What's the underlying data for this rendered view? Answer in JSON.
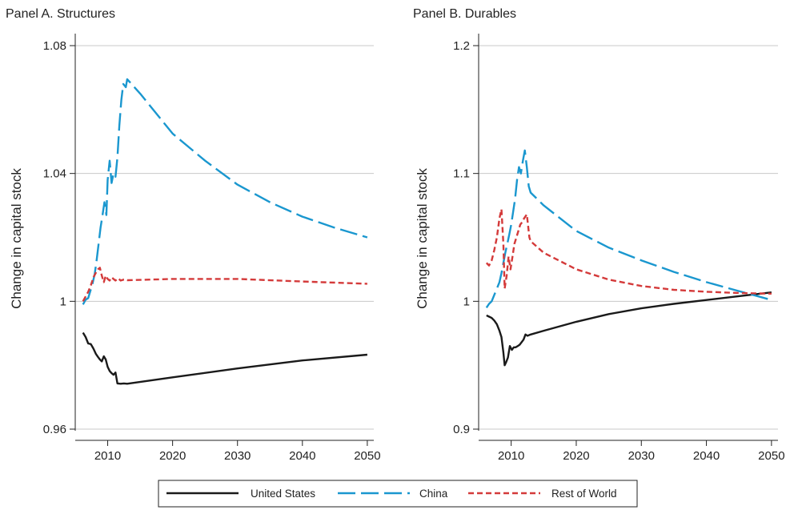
{
  "chart_data": [
    {
      "type": "line",
      "title": "Panel A. Structures",
      "xlabel": "",
      "ylabel": "Change in capital stock",
      "xlim": [
        2005,
        2051
      ],
      "ylim": [
        0.96,
        1.08
      ],
      "xticks": [
        2010,
        2020,
        2030,
        2040,
        2050
      ],
      "yticks": [
        0.96,
        1,
        1.04,
        1.08
      ],
      "ytick_labels": [
        "0.96",
        "1",
        "1.04",
        "1.08"
      ],
      "grid": true,
      "series": [
        {
          "name": "United States",
          "color": "#1a1a1a",
          "dash": "solid",
          "x": [
            2006.2,
            2006.6,
            2007.0,
            2007.4,
            2007.8,
            2008.2,
            2008.5,
            2008.8,
            2009.1,
            2009.4,
            2009.7,
            2010.0,
            2010.3,
            2010.6,
            2010.9,
            2011.2,
            2011.5,
            2012.0,
            2012.5,
            2013.0,
            2020,
            2030,
            2040,
            2050
          ],
          "y": [
            0.9902,
            0.9888,
            0.9868,
            0.9866,
            0.9852,
            0.9835,
            0.9826,
            0.9818,
            0.9812,
            0.9828,
            0.9818,
            0.9795,
            0.9782,
            0.9775,
            0.977,
            0.9777,
            0.9743,
            0.9742,
            0.9743,
            0.9742,
            0.9762,
            0.979,
            0.9815,
            0.9833
          ]
        },
        {
          "name": "China",
          "color": "#1a97cf",
          "dash": "long",
          "x": [
            2006.2,
            2006.6,
            2007.0,
            2007.3,
            2007.6,
            2008.0,
            2008.3,
            2008.6,
            2008.9,
            2009.2,
            2009.5,
            2009.8,
            2010.0,
            2010.3,
            2010.6,
            2010.9,
            2011.2,
            2011.5,
            2011.8,
            2012.1,
            2012.4,
            2012.8,
            2013.0,
            2015,
            2020,
            2025,
            2030,
            2035,
            2040,
            2045,
            2050
          ],
          "y": [
            0.999,
            1.0005,
            1.001,
            1.003,
            1.005,
            1.0085,
            1.013,
            1.018,
            1.023,
            1.027,
            1.031,
            1.027,
            1.038,
            1.044,
            1.037,
            1.04,
            1.039,
            1.045,
            1.055,
            1.063,
            1.068,
            1.067,
            1.0695,
            1.065,
            1.0525,
            1.044,
            1.0365,
            1.031,
            1.0265,
            1.023,
            1.02
          ]
        },
        {
          "name": "Rest of World",
          "color": "#d43a3a",
          "dash": "short",
          "x": [
            2006.2,
            2006.6,
            2007.0,
            2007.4,
            2007.8,
            2008.2,
            2008.5,
            2008.8,
            2009.1,
            2009.4,
            2009.7,
            2010.0,
            2010.3,
            2010.6,
            2010.9,
            2011.2,
            2011.6,
            2012.0,
            2012.5,
            2013.0,
            2015,
            2020,
            2030,
            2040,
            2050
          ],
          "y": [
            1.0,
            1.0015,
            1.003,
            1.005,
            1.0075,
            1.009,
            1.01,
            1.0105,
            1.008,
            1.006,
            1.008,
            1.007,
            1.0065,
            1.0075,
            1.007,
            1.0065,
            1.0072,
            1.0065,
            1.0068,
            1.0066,
            1.0067,
            1.007,
            1.007,
            1.0062,
            1.0055
          ]
        }
      ]
    },
    {
      "type": "line",
      "title": "Panel B. Durables",
      "xlabel": "",
      "ylabel": "Change in capital stock",
      "xlim": [
        2005,
        2051
      ],
      "ylim": [
        0.9,
        1.2
      ],
      "xticks": [
        2010,
        2020,
        2030,
        2040,
        2050
      ],
      "yticks": [
        0.9,
        1,
        1.1,
        1.2
      ],
      "ytick_labels": [
        "0.9",
        "1",
        "1.1",
        "1.2"
      ],
      "grid": true,
      "series": [
        {
          "name": "United States",
          "color": "#1a1a1a",
          "dash": "solid",
          "x": [
            2006.2,
            2006.6,
            2007.0,
            2007.4,
            2007.8,
            2008.2,
            2008.5,
            2008.8,
            2009.0,
            2009.2,
            2009.5,
            2009.8,
            2010.1,
            2010.4,
            2010.7,
            2011.0,
            2011.3,
            2011.6,
            2011.9,
            2012.2,
            2012.5,
            2013.0,
            2015,
            2020,
            2025,
            2030,
            2035,
            2040,
            2045,
            2050
          ],
          "y": [
            0.989,
            0.988,
            0.987,
            0.985,
            0.982,
            0.977,
            0.972,
            0.96,
            0.95,
            0.952,
            0.956,
            0.965,
            0.962,
            0.964,
            0.964,
            0.965,
            0.966,
            0.968,
            0.97,
            0.974,
            0.973,
            0.974,
            0.977,
            0.984,
            0.99,
            0.9945,
            0.998,
            1.001,
            1.004,
            1.007
          ]
        },
        {
          "name": "China",
          "color": "#1a97cf",
          "dash": "long",
          "x": [
            2006.2,
            2006.6,
            2007.0,
            2007.4,
            2007.8,
            2008.2,
            2008.5,
            2008.8,
            2009.1,
            2009.4,
            2009.7,
            2010.0,
            2010.3,
            2010.6,
            2010.9,
            2011.2,
            2011.5,
            2011.8,
            2012.1,
            2012.4,
            2012.7,
            2013.0,
            2015,
            2020,
            2025,
            2030,
            2035,
            2040,
            2045,
            2050
          ],
          "y": [
            0.995,
            0.998,
            1.0,
            1.005,
            1.01,
            1.015,
            1.022,
            1.03,
            1.038,
            1.045,
            1.052,
            1.06,
            1.07,
            1.08,
            1.095,
            1.105,
            1.1,
            1.11,
            1.118,
            1.105,
            1.09,
            1.085,
            1.075,
            1.055,
            1.042,
            1.032,
            1.023,
            1.015,
            1.008,
            1.001
          ]
        },
        {
          "name": "Rest of World",
          "color": "#d43a3a",
          "dash": "short",
          "x": [
            2006.2,
            2006.6,
            2007.0,
            2007.4,
            2007.8,
            2008.2,
            2008.5,
            2008.8,
            2009.0,
            2009.3,
            2009.6,
            2009.9,
            2010.2,
            2010.5,
            2010.8,
            2011.1,
            2011.4,
            2011.7,
            2012.0,
            2012.4,
            2012.8,
            2013.0,
            2015,
            2020,
            2025,
            2030,
            2035,
            2040,
            2045,
            2050
          ],
          "y": [
            1.03,
            1.028,
            1.032,
            1.04,
            1.05,
            1.065,
            1.072,
            1.045,
            1.01,
            1.02,
            1.035,
            1.025,
            1.035,
            1.045,
            1.05,
            1.055,
            1.06,
            1.062,
            1.065,
            1.068,
            1.05,
            1.047,
            1.038,
            1.025,
            1.017,
            1.012,
            1.009,
            1.0075,
            1.0065,
            1.006
          ]
        }
      ]
    }
  ],
  "legend": {
    "placement": "bottom",
    "items": [
      {
        "label": "United States",
        "color": "#1a1a1a",
        "dash": "solid"
      },
      {
        "label": "China",
        "color": "#1a97cf",
        "dash": "long"
      },
      {
        "label": "Rest of World",
        "color": "#d43a3a",
        "dash": "short"
      }
    ]
  }
}
